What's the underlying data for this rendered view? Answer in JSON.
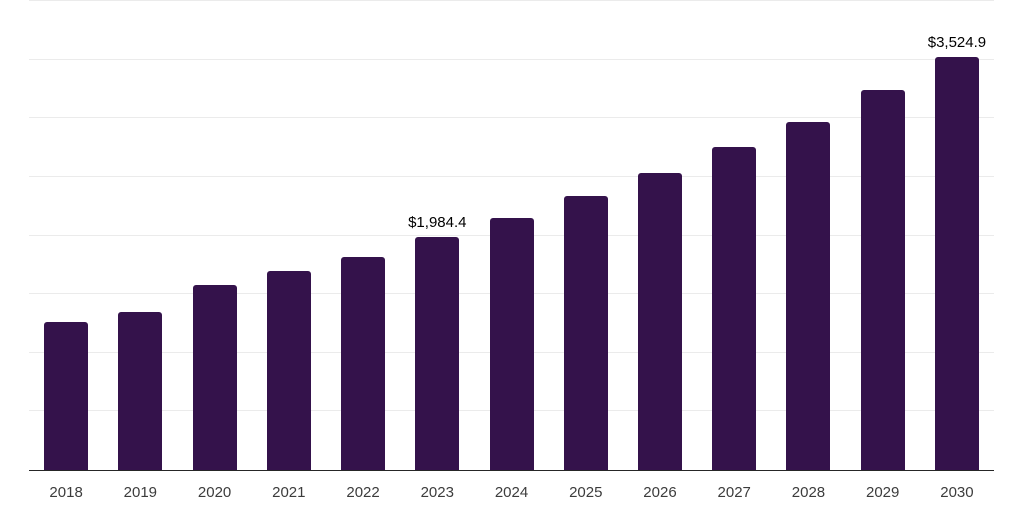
{
  "chart_data": {
    "type": "bar",
    "categories": [
      "2018",
      "2019",
      "2020",
      "2021",
      "2022",
      "2023",
      "2024",
      "2025",
      "2026",
      "2027",
      "2028",
      "2029",
      "2030"
    ],
    "values": [
      1265,
      1350,
      1580,
      1695,
      1820,
      1984.4,
      2150,
      2340,
      2535,
      2755,
      2970,
      3245,
      3524.9
    ],
    "point_labels": [
      "",
      "",
      "",
      "",
      "",
      "$1,984.4",
      "",
      "",
      "",
      "",
      "",
      "",
      "$3,524.9"
    ],
    "title": "",
    "xlabel": "",
    "ylabel": "",
    "ylim": [
      0,
      4000
    ],
    "gridline_step": 500,
    "grid": true,
    "legend_position": "none",
    "colors": {
      "bar": "#34124B",
      "grid": "#EBEBEB",
      "axis": "#262626",
      "tick_label": "#3C3C3C",
      "value_label": "#000000",
      "background": "#FFFFFF"
    }
  }
}
